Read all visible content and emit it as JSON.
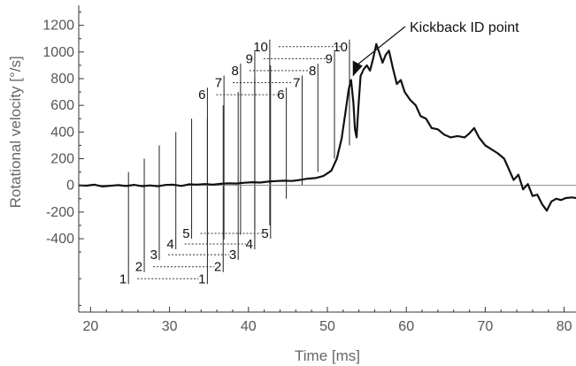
{
  "chart_data": {
    "type": "line",
    "xlabel": "Time [ms]",
    "ylabel": "Rotational velocity [°/s]",
    "xlim": [
      18.5,
      81.5
    ],
    "ylim": [
      -950,
      1350
    ],
    "x_ticks": [
      20,
      30,
      40,
      50,
      60,
      70,
      80
    ],
    "y_ticks": [
      -400,
      -200,
      0,
      200,
      400,
      600,
      800,
      1000,
      1200
    ],
    "zero_line": true,
    "series": [
      {
        "points": [
          [
            18.5,
            0
          ],
          [
            19.5,
            -2
          ],
          [
            20.5,
            5
          ],
          [
            21.5,
            -8
          ],
          [
            22.5,
            -3
          ],
          [
            23.5,
            2
          ],
          [
            24.5,
            -5
          ],
          [
            25.5,
            4
          ],
          [
            26.5,
            -6
          ],
          [
            27.5,
            0
          ],
          [
            28.5,
            -7
          ],
          [
            29.5,
            3
          ],
          [
            30.5,
            5
          ],
          [
            31.5,
            -4
          ],
          [
            32.5,
            8
          ],
          [
            33.5,
            6
          ],
          [
            34.5,
            10
          ],
          [
            35.5,
            5
          ],
          [
            36.5,
            12
          ],
          [
            37.5,
            15
          ],
          [
            38.5,
            14
          ],
          [
            39.5,
            20
          ],
          [
            40.5,
            24
          ],
          [
            41.5,
            21
          ],
          [
            42.5,
            28
          ],
          [
            43.5,
            32
          ],
          [
            44.5,
            35
          ],
          [
            45.5,
            33
          ],
          [
            46.5,
            40
          ],
          [
            47.5,
            50
          ],
          [
            48.5,
            55
          ],
          [
            49.5,
            70
          ],
          [
            50.5,
            110
          ],
          [
            51.2,
            200
          ],
          [
            51.8,
            350
          ],
          [
            52.3,
            550
          ],
          [
            52.7,
            720
          ],
          [
            53.0,
            790
          ],
          [
            53.3,
            620
          ],
          [
            53.5,
            420
          ],
          [
            53.7,
            360
          ],
          [
            53.9,
            560
          ],
          [
            54.2,
            820
          ],
          [
            54.6,
            870
          ],
          [
            55.0,
            900
          ],
          [
            55.4,
            860
          ],
          [
            55.8,
            950
          ],
          [
            56.2,
            1060
          ],
          [
            56.6,
            990
          ],
          [
            57.0,
            920
          ],
          [
            57.4,
            980
          ],
          [
            57.8,
            1010
          ],
          [
            58.3,
            880
          ],
          [
            58.8,
            760
          ],
          [
            59.3,
            790
          ],
          [
            59.8,
            700
          ],
          [
            60.5,
            640
          ],
          [
            61.2,
            600
          ],
          [
            61.8,
            520
          ],
          [
            62.5,
            500
          ],
          [
            63.2,
            430
          ],
          [
            64.0,
            420
          ],
          [
            64.8,
            380
          ],
          [
            65.6,
            360
          ],
          [
            66.5,
            370
          ],
          [
            67.4,
            360
          ],
          [
            68.0,
            390
          ],
          [
            68.6,
            430
          ],
          [
            69.2,
            360
          ],
          [
            70.0,
            300
          ],
          [
            70.8,
            270
          ],
          [
            71.6,
            240
          ],
          [
            72.4,
            200
          ],
          [
            73.0,
            120
          ],
          [
            73.6,
            40
          ],
          [
            74.2,
            80
          ],
          [
            74.8,
            -30
          ],
          [
            75.4,
            10
          ],
          [
            76.0,
            -80
          ],
          [
            76.6,
            -70
          ],
          [
            77.2,
            -140
          ],
          [
            77.8,
            -190
          ],
          [
            78.4,
            -120
          ],
          [
            79.0,
            -100
          ],
          [
            79.6,
            -110
          ],
          [
            80.2,
            -95
          ],
          [
            81.0,
            -90
          ],
          [
            81.5,
            -95
          ]
        ]
      }
    ],
    "annotation": "Kickback ID point",
    "annotation_target": [
      53.0,
      790
    ],
    "markers": {
      "numbers": [
        "1",
        "2",
        "3",
        "4",
        "5",
        "6",
        "7",
        "8",
        "9",
        "10"
      ],
      "left_x": [
        24.8,
        26.8,
        28.7,
        30.8,
        32.8,
        34.8,
        36.9,
        39.0,
        40.8,
        42.7
      ],
      "right_x": [
        34.8,
        36.8,
        38.7,
        40.8,
        42.8,
        44.8,
        46.8,
        48.8,
        50.9,
        52.8
      ],
      "levels": [
        -700,
        -610,
        -520,
        -440,
        -360,
        680,
        770,
        860,
        950,
        1040
      ]
    }
  }
}
